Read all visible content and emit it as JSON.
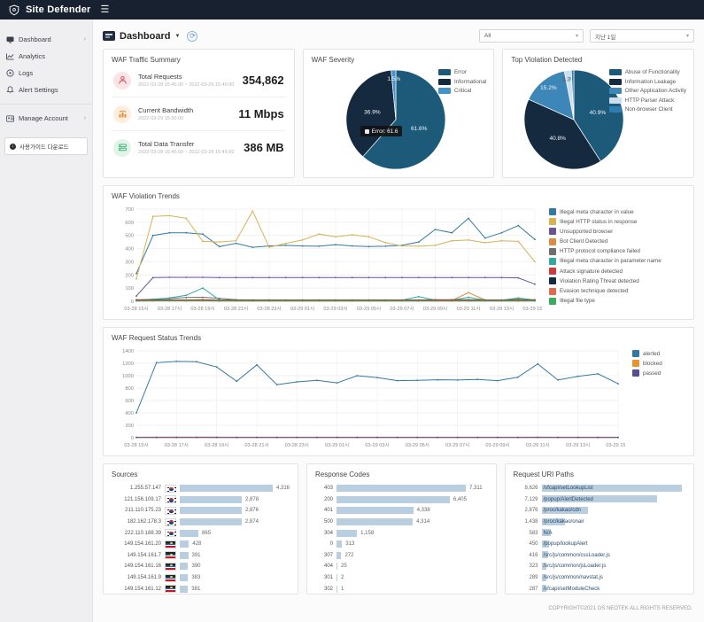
{
  "topbar": {
    "title": "Site Defender"
  },
  "sidebar": {
    "items": [
      {
        "label": "Dashboard"
      },
      {
        "label": "Analytics"
      },
      {
        "label": "Logs"
      },
      {
        "label": "Alert Settings"
      },
      {
        "label": "Manage Account"
      }
    ],
    "guide_button": "사용가이드 다운로드"
  },
  "header": {
    "title": "Dashboard",
    "filter_all": "All",
    "filter_period": "지난 1일"
  },
  "traffic_summary": {
    "title": "WAF Traffic Summary",
    "items": [
      {
        "label": "Total Requests",
        "period": "2022-03-28 15:45:00 ~ 2022-03-29 15:45:00",
        "value": "354,862"
      },
      {
        "label": "Current Bandwidth",
        "period": "2022-03-29 15:30:00",
        "value": "11 Mbps"
      },
      {
        "label": "Total Data Transfer",
        "period": "2022-03-28 15:45:00 ~ 2022-03-29 15:45:00",
        "value": "386 MB"
      }
    ]
  },
  "footer": {
    "copyright": "COPYRIGHT©2021 GS NEOTEK ALL RIGHTS RESERVED."
  },
  "chart_data": [
    {
      "type": "pie",
      "title": "WAF Severity",
      "legend_position": "top-right",
      "tooltip": "Error: 61.6",
      "slices": [
        {
          "label": "Error",
          "pct": 61.6,
          "display": "61.6%",
          "color": "#1d5a7a"
        },
        {
          "label": "Informational",
          "pct": 36.9,
          "display": "36.9%",
          "color": "#152a3e"
        },
        {
          "label": "Critical",
          "pct": 1.5,
          "display": "1.5%",
          "color": "#4494c9"
        }
      ]
    },
    {
      "type": "pie",
      "title": "Top Violation Detected",
      "legend_position": "top-right",
      "slices": [
        {
          "label": "Abuse of Functionality",
          "pct": 40.9,
          "display": "40.9%",
          "color": "#1d5a7a"
        },
        {
          "label": "Information Leakage",
          "pct": 40.8,
          "display": "40.8%",
          "color": "#152a3e"
        },
        {
          "label": "Other Application Activity",
          "pct": 15.2,
          "display": "15.2%",
          "color": "#3c87b8"
        },
        {
          "label": "HTTP Parser Attack",
          "pct": 2.3,
          "display": "2.3%",
          "color": "#cadeed"
        },
        {
          "label": "Non-browser Client",
          "pct": 0.8,
          "display": "0.8%",
          "color": "#2e7cb0"
        }
      ]
    },
    {
      "type": "line",
      "title": "WAF Violation Trends",
      "ylim": [
        0,
        700
      ],
      "ytick": 100,
      "grid": true,
      "legend_position": "right",
      "x_ticks": [
        "03-28 15시",
        "03-28 17시",
        "03-28 19시",
        "03-28 21시",
        "03-28 23시",
        "03-29 01시",
        "03-29 03시",
        "03-29 05시",
        "03-29 07시",
        "03-29 09시",
        "03-29 11시",
        "03-29 13시",
        "03-29 15시"
      ],
      "series": [
        {
          "name": "Illegal meta character in value",
          "color": "#3379a2",
          "values": [
            210,
            500,
            520,
            520,
            510,
            415,
            440,
            410,
            420,
            425,
            420,
            418,
            430,
            420,
            415,
            418,
            425,
            450,
            545,
            520,
            630,
            480,
            520,
            575,
            470
          ]
        },
        {
          "name": "Illegal HTTP status in response",
          "color": "#d8b254",
          "values": [
            170,
            645,
            650,
            630,
            455,
            450,
            460,
            685,
            410,
            440,
            465,
            510,
            490,
            505,
            490,
            445,
            420,
            418,
            425,
            460,
            465,
            445,
            460,
            455,
            300
          ]
        },
        {
          "name": "Unsupported browser",
          "color": "#6a5296",
          "values": [
            40,
            180,
            182,
            182,
            182,
            180,
            180,
            180,
            180,
            180,
            180,
            180,
            180,
            180,
            180,
            180,
            180,
            180,
            180,
            180,
            180,
            180,
            180,
            178,
            130
          ]
        },
        {
          "name": "Bot Client Detected",
          "color": "#df8a3c",
          "values": [
            5,
            8,
            8,
            8,
            8,
            6,
            6,
            6,
            6,
            6,
            6,
            6,
            6,
            6,
            6,
            6,
            6,
            6,
            6,
            6,
            65,
            10,
            6,
            20,
            12
          ]
        },
        {
          "name": "HTTP protocol compliance failed",
          "color": "#6e6e6e",
          "values": [
            10,
            15,
            20,
            28,
            30,
            22,
            12,
            10,
            10,
            10,
            10,
            10,
            10,
            10,
            10,
            10,
            10,
            10,
            12,
            12,
            12,
            10,
            10,
            12,
            10
          ]
        },
        {
          "name": "Illegal meta character in parameter name",
          "color": "#2fa8a0",
          "values": [
            5,
            15,
            25,
            45,
            100,
            10,
            8,
            8,
            8,
            8,
            8,
            8,
            8,
            8,
            8,
            8,
            8,
            35,
            8,
            8,
            30,
            8,
            8,
            25,
            8
          ]
        },
        {
          "name": "Attack signature detected",
          "color": "#cf3b3b",
          "values": [
            12,
            10,
            10,
            10,
            12,
            8,
            8,
            8,
            8,
            8,
            8,
            8,
            8,
            8,
            8,
            8,
            8,
            8,
            10,
            10,
            8,
            8,
            8,
            8,
            8
          ]
        },
        {
          "name": "Violation Rating Threat detected",
          "color": "#152a3e",
          "values": [
            4,
            5,
            5,
            5,
            5,
            4,
            4,
            4,
            4,
            4,
            4,
            4,
            4,
            4,
            4,
            4,
            4,
            4,
            4,
            4,
            4,
            4,
            4,
            4,
            4
          ]
        },
        {
          "name": "Evasion technique detected",
          "color": "#e06a4e",
          "values": [
            3,
            4,
            4,
            4,
            4,
            3,
            3,
            3,
            3,
            3,
            3,
            3,
            3,
            3,
            3,
            3,
            3,
            3,
            3,
            3,
            3,
            3,
            3,
            3,
            3
          ]
        },
        {
          "name": "Illegal file type",
          "color": "#3cab5e",
          "values": [
            2,
            3,
            3,
            3,
            3,
            2,
            2,
            2,
            2,
            2,
            2,
            2,
            2,
            2,
            2,
            2,
            2,
            2,
            2,
            2,
            2,
            2,
            2,
            2,
            2
          ]
        }
      ]
    },
    {
      "type": "line",
      "title": "WAF Request Status Trends",
      "ylim": [
        0,
        1400
      ],
      "ytick": 200,
      "grid": true,
      "legend_position": "right",
      "x_ticks": [
        "03-28 15시",
        "03-28 17시",
        "03-28 19시",
        "03-28 21시",
        "03-28 23시",
        "03-29 01시",
        "03-29 03시",
        "03-29 05시",
        "03-29 07시",
        "03-29 09시",
        "03-29 11시",
        "03-29 13시",
        "03-29 15시"
      ],
      "series": [
        {
          "name": "alerted",
          "color": "#3379a2",
          "values": [
            400,
            1210,
            1230,
            1225,
            1140,
            910,
            1175,
            855,
            900,
            925,
            885,
            1000,
            970,
            920,
            925,
            935,
            930,
            940,
            920,
            975,
            1190,
            930,
            990,
            1030,
            870
          ]
        },
        {
          "name": "blocked",
          "color": "#e59435",
          "values": [
            8,
            10,
            10,
            10,
            10,
            8,
            8,
            8,
            8,
            8,
            8,
            8,
            8,
            8,
            8,
            8,
            8,
            8,
            8,
            8,
            10,
            8,
            8,
            8,
            8
          ]
        },
        {
          "name": "passed",
          "color": "#5a4b96",
          "values": [
            3,
            3,
            3,
            3,
            3,
            3,
            3,
            3,
            3,
            3,
            3,
            3,
            3,
            3,
            3,
            3,
            3,
            3,
            3,
            3,
            3,
            3,
            3,
            3,
            3
          ]
        }
      ]
    },
    {
      "type": "bar",
      "title": "Sources",
      "variant": "sources",
      "categories": [
        "1.255.57.147",
        "121.156.109.17",
        "211.110.175.23",
        "182.162.178.3",
        "222.110.188.39",
        "149.154.161.20",
        "149.154.161.7",
        "149.154.161.16",
        "149.154.161.9",
        "149.154.161.12"
      ],
      "flags": [
        "kr",
        "kr",
        "kr",
        "kr",
        "kr",
        "ag",
        "ag",
        "ag",
        "ag",
        "ag"
      ],
      "values": [
        4316,
        2878,
        2876,
        2874,
        865,
        428,
        391,
        390,
        383,
        381
      ],
      "labels": [
        "4,316",
        "2,878",
        "2,876",
        "2,874",
        "865",
        "428",
        "391",
        "390",
        "383",
        "381"
      ]
    },
    {
      "type": "bar",
      "title": "Response Codes",
      "variant": "codes",
      "categories": [
        "403",
        "200",
        "401",
        "500",
        "304",
        "0",
        "307",
        "404",
        "301",
        "302"
      ],
      "values": [
        7311,
        6405,
        4338,
        4314,
        1158,
        313,
        272,
        25,
        2,
        1
      ],
      "labels": [
        "7,311",
        "6,405",
        "4,338",
        "4,314",
        "1,158",
        "313",
        "272",
        "25",
        "2",
        "1"
      ]
    },
    {
      "type": "bar",
      "title": "Request URI Paths",
      "variant": "paths",
      "categories": [
        "/sfcapi/setLookupList",
        "/popup/AlertDetected",
        "/proc/kakao/cdn",
        "/proc/kakao/onair",
        "N/A",
        "/popup/lookupAlert",
        "/src/js/common/cssLoader.js",
        "/src/js/common/jsLoader.js",
        "/src/js/common/navstat.js",
        "/sfcapi/setModuleCheck"
      ],
      "values": [
        8626,
        7129,
        2876,
        1438,
        583,
        450,
        416,
        323,
        289,
        287
      ],
      "labels": [
        "8,626",
        "7,129",
        "2,876",
        "1,438",
        "583",
        "450",
        "416",
        "323",
        "289",
        "287"
      ]
    }
  ]
}
